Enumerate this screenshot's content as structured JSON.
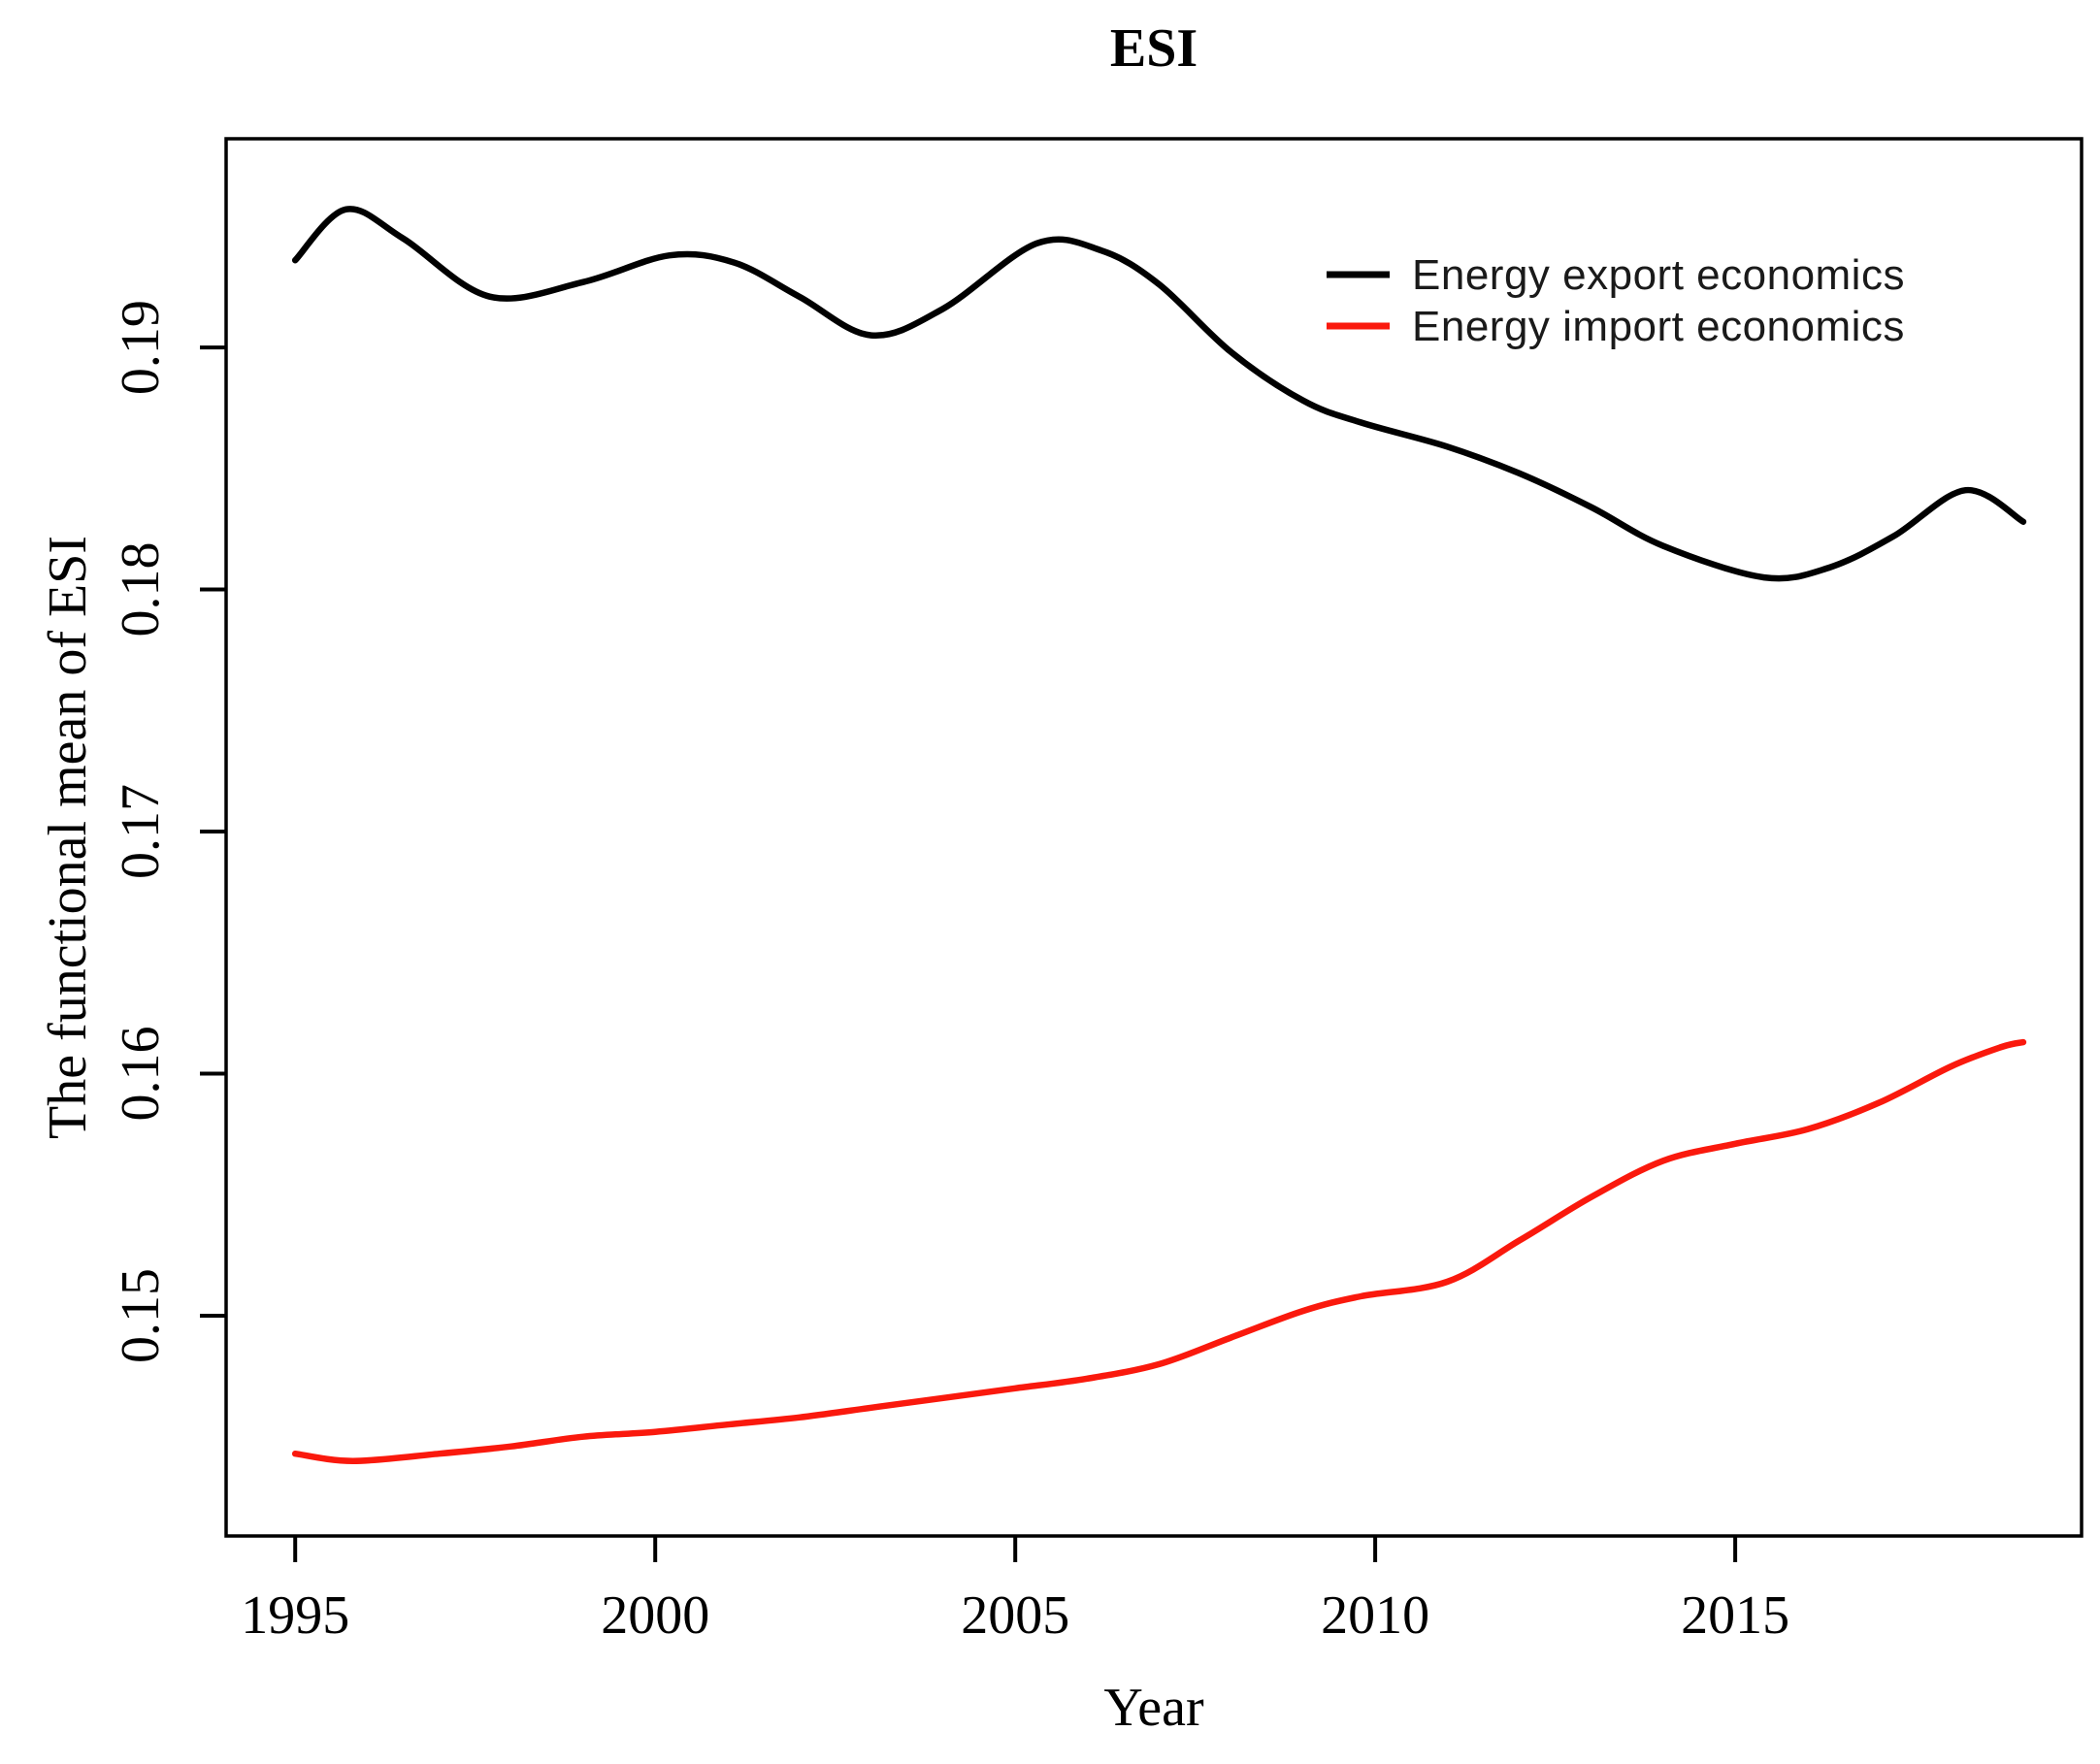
{
  "page": {
    "background": "#ffffff"
  },
  "chart_data": {
    "type": "line",
    "title": "ESI",
    "xlabel": "Year",
    "ylabel": "The functional mean of ESI",
    "xlim": [
      1994.04,
      2019.81
    ],
    "ylim": [
      0.1409,
      0.19862
    ],
    "grid": false,
    "legend_position": "top-right-inside",
    "x_ticks": [
      {
        "v": 1995,
        "label": "1995"
      },
      {
        "v": 2000,
        "label": "2000"
      },
      {
        "v": 2005,
        "label": "2005"
      },
      {
        "v": 2010,
        "label": "2010"
      },
      {
        "v": 2015,
        "label": "2015"
      }
    ],
    "y_ticks": [
      {
        "v": 0.15,
        "label": "0.15"
      },
      {
        "v": 0.16,
        "label": "0.16"
      },
      {
        "v": 0.17,
        "label": "0.17"
      },
      {
        "v": 0.18,
        "label": "0.18"
      },
      {
        "v": 0.19,
        "label": "0.19"
      }
    ],
    "series": [
      {
        "name": "Energy export economics",
        "color": "#000000",
        "points": [
          [
            1995.0,
            0.1936
          ],
          [
            1995.7,
            0.1957
          ],
          [
            1996.5,
            0.1945
          ],
          [
            1997.7,
            0.1921
          ],
          [
            1999.0,
            0.1927
          ],
          [
            2000.2,
            0.1938
          ],
          [
            2001.1,
            0.1935
          ],
          [
            2002.0,
            0.1921
          ],
          [
            2003.0,
            0.1905
          ],
          [
            2004.0,
            0.1916
          ],
          [
            2005.3,
            0.1943
          ],
          [
            2006.2,
            0.194
          ],
          [
            2007.0,
            0.1926
          ],
          [
            2008.0,
            0.1898
          ],
          [
            2009.0,
            0.1878
          ],
          [
            2009.8,
            0.1869
          ],
          [
            2011.0,
            0.1859
          ],
          [
            2012.0,
            0.1848
          ],
          [
            2013.0,
            0.1834
          ],
          [
            2014.0,
            0.1818
          ],
          [
            2015.4,
            0.1805
          ],
          [
            2016.3,
            0.1809
          ],
          [
            2017.2,
            0.1822
          ],
          [
            2018.2,
            0.1841
          ],
          [
            2019.0,
            0.1828
          ]
        ]
      },
      {
        "name": "Energy import economics",
        "color": "#fa190d",
        "points": [
          [
            1995.0,
            0.1443
          ],
          [
            1995.8,
            0.144
          ],
          [
            1997.0,
            0.1443
          ],
          [
            1998.0,
            0.1446
          ],
          [
            1999.0,
            0.145
          ],
          [
            2000.0,
            0.1452
          ],
          [
            2001.0,
            0.1455
          ],
          [
            2002.0,
            0.1458
          ],
          [
            2003.0,
            0.1462
          ],
          [
            2004.0,
            0.1466
          ],
          [
            2005.0,
            0.147
          ],
          [
            2006.0,
            0.1474
          ],
          [
            2007.0,
            0.148
          ],
          [
            2008.0,
            0.1491
          ],
          [
            2009.0,
            0.1502
          ],
          [
            2009.8,
            0.1508
          ],
          [
            2011.0,
            0.1514
          ],
          [
            2012.0,
            0.1531
          ],
          [
            2013.0,
            0.1549
          ],
          [
            2014.0,
            0.1564
          ],
          [
            2015.0,
            0.1571
          ],
          [
            2016.0,
            0.1577
          ],
          [
            2017.0,
            0.1588
          ],
          [
            2018.0,
            0.1603
          ],
          [
            2018.7,
            0.1611
          ],
          [
            2019.0,
            0.1613
          ]
        ]
      }
    ]
  }
}
